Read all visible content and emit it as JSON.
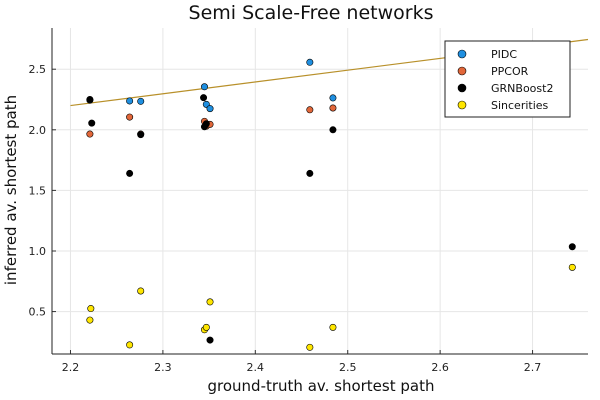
{
  "chart_data": {
    "type": "scatter",
    "title": "Semi Scale-Free networks",
    "xlabel": "ground-truth av. shortest path",
    "ylabel": "inferred av. shortest path",
    "xlim": [
      2.18,
      2.76
    ],
    "ylim": [
      0.15,
      2.84
    ],
    "xticks": [
      2.2,
      2.3,
      2.4,
      2.5,
      2.6,
      2.7
    ],
    "yticks": [
      0.5,
      1.0,
      1.5,
      2.0,
      2.5
    ],
    "xtick_labels": [
      "2.2",
      "2.3",
      "2.4",
      "2.5",
      "2.6",
      "2.7"
    ],
    "ytick_labels": [
      "0.5",
      "1.0",
      "1.5",
      "2.0",
      "2.5"
    ],
    "grid": true,
    "legend_position": "top-right",
    "series": [
      {
        "name": "PIDC",
        "color": "#1f8fe0",
        "x": [
          2.221,
          2.264,
          2.276,
          2.345,
          2.347,
          2.351,
          2.459,
          2.484
        ],
        "y": [
          2.245,
          2.238,
          2.235,
          2.355,
          2.21,
          2.175,
          2.557,
          2.263
        ]
      },
      {
        "name": "PPCOR",
        "color": "#e2673a",
        "x": [
          2.221,
          2.264,
          2.276,
          2.345,
          2.347,
          2.351,
          2.459,
          2.484
        ],
        "y": [
          1.965,
          2.105,
          1.965,
          2.07,
          2.03,
          2.045,
          2.165,
          2.18
        ]
      },
      {
        "name": "GRNBoost2",
        "color": "#000000",
        "x": [
          2.221,
          2.223,
          2.264,
          2.276,
          2.344,
          2.345,
          2.347,
          2.351,
          2.459,
          2.484,
          2.743
        ],
        "y": [
          2.25,
          2.055,
          1.64,
          1.96,
          2.265,
          2.025,
          2.05,
          0.265,
          1.64,
          2.0,
          1.035
        ]
      },
      {
        "name": "Sincerities",
        "color": "#ffe600",
        "x": [
          2.221,
          2.222,
          2.264,
          2.276,
          2.345,
          2.347,
          2.351,
          2.459,
          2.484,
          2.743
        ],
        "y": [
          0.43,
          0.525,
          0.225,
          0.67,
          0.35,
          0.37,
          0.58,
          0.205,
          0.37,
          0.865
        ]
      }
    ],
    "fit_line": {
      "color": "#b8902a",
      "x": [
        2.2,
        2.76
      ],
      "y": [
        2.2,
        2.745
      ]
    }
  }
}
